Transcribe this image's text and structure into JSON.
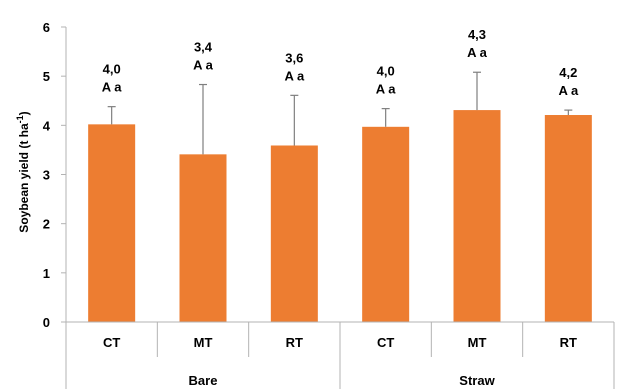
{
  "chart_data": {
    "type": "bar",
    "ylabel_main": "Soybean yield (t ha",
    "ylabel_sup": "-1",
    "ylabel_close": ")",
    "ylim": [
      0,
      6
    ],
    "yticks": [
      "0",
      "1",
      "2",
      "3",
      "4",
      "5",
      "6"
    ],
    "grid": false,
    "bar_color": "#ED7D31",
    "categories": [
      "CT",
      "MT",
      "RT",
      "CT",
      "MT",
      "RT"
    ],
    "groups": [
      {
        "label": "Bare",
        "size": 3
      },
      {
        "label": "Straw",
        "size": 3
      }
    ],
    "values": [
      4.02,
      3.41,
      3.59,
      3.97,
      4.31,
      4.21
    ],
    "error_upper": [
      4.38,
      4.83,
      4.61,
      4.34,
      5.08,
      4.31
    ],
    "value_labels": [
      "4,0",
      "3,4",
      "3,6",
      "4,0",
      "4,3",
      "4,2"
    ],
    "letter_labels": [
      "A a",
      "A a",
      "A a",
      "A a",
      "A a",
      "A a"
    ]
  }
}
